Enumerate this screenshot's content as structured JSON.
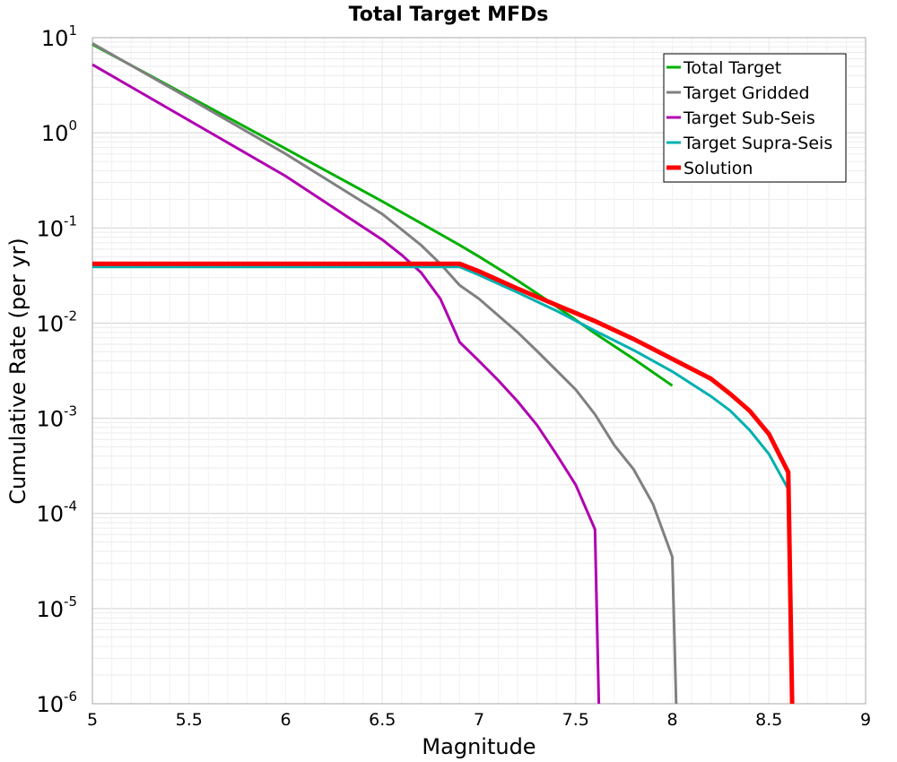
{
  "chart_data": {
    "type": "line",
    "title": "Total Target MFDs",
    "xlabel": "Magnitude",
    "ylabel": "Cumulative Rate (per yr)",
    "x_scale": "linear",
    "y_scale": "log",
    "xlim": [
      5,
      9
    ],
    "ylim": [
      1e-06,
      10
    ],
    "x_ticks": [
      "5",
      "5.5",
      "6",
      "6.5",
      "7",
      "7.5",
      "8",
      "8.5",
      "9"
    ],
    "y_ticks": [
      {
        "base": "10",
        "exp": "1"
      },
      {
        "base": "10",
        "exp": "0"
      },
      {
        "base": "10",
        "exp": "-1"
      },
      {
        "base": "10",
        "exp": "-2"
      },
      {
        "base": "10",
        "exp": "-3"
      },
      {
        "base": "10",
        "exp": "-4"
      },
      {
        "base": "10",
        "exp": "-5"
      },
      {
        "base": "10",
        "exp": "-6"
      }
    ],
    "grid": true,
    "legend_position": "top-right",
    "series": [
      {
        "name": "Total Target",
        "color": "#00b000",
        "x": [
          5.0,
          5.5,
          6.0,
          6.5,
          6.9,
          7.0,
          7.2,
          7.4,
          7.6,
          7.8,
          8.0
        ],
        "y": [
          8.5,
          2.4,
          0.68,
          0.19,
          0.066,
          0.05,
          0.028,
          0.015,
          0.0078,
          0.0042,
          0.0022
        ]
      },
      {
        "name": "Target Gridded",
        "color": "#808080",
        "x": [
          5.0,
          5.5,
          6.0,
          6.5,
          6.7,
          6.8,
          6.9,
          7.0,
          7.1,
          7.2,
          7.3,
          7.4,
          7.5,
          7.6,
          7.7,
          7.8,
          7.9,
          8.0,
          8.02
        ],
        "y": [
          8.7,
          2.3,
          0.6,
          0.14,
          0.066,
          0.042,
          0.025,
          0.018,
          0.012,
          0.008,
          0.0051,
          0.0032,
          0.002,
          0.0011,
          0.00052,
          0.00029,
          0.000125,
          3.5e-05,
          1e-06
        ]
      },
      {
        "name": "Target Sub-Seis",
        "color": "#b000b0",
        "x": [
          5.0,
          5.5,
          6.0,
          6.5,
          6.6,
          6.7,
          6.8,
          6.9,
          7.0,
          7.1,
          7.2,
          7.3,
          7.4,
          7.5,
          7.6,
          7.62
        ],
        "y": [
          5.2,
          1.35,
          0.35,
          0.075,
          0.052,
          0.034,
          0.018,
          0.0063,
          0.004,
          0.0025,
          0.0015,
          0.00085,
          0.00042,
          0.0002,
          6.8e-05,
          1e-06
        ]
      },
      {
        "name": "Target Supra-Seis",
        "color": "#00b0b0",
        "x": [
          5.0,
          6.9,
          7.0,
          7.2,
          7.4,
          7.6,
          7.8,
          8.0,
          8.2,
          8.3,
          8.4,
          8.5,
          8.6
        ],
        "y": [
          0.039,
          0.039,
          0.032,
          0.021,
          0.0135,
          0.0083,
          0.0052,
          0.0031,
          0.0017,
          0.0012,
          0.00075,
          0.00042,
          0.00018
        ]
      },
      {
        "name": "Solution",
        "color": "#ff0000",
        "x": [
          5.0,
          6.9,
          7.0,
          7.2,
          7.4,
          7.6,
          7.8,
          8.0,
          8.2,
          8.3,
          8.4,
          8.5,
          8.6,
          8.62
        ],
        "y": [
          0.042,
          0.042,
          0.035,
          0.023,
          0.0155,
          0.0105,
          0.0068,
          0.0042,
          0.0026,
          0.0018,
          0.0012,
          0.00068,
          0.00027,
          1e-06
        ]
      }
    ]
  }
}
